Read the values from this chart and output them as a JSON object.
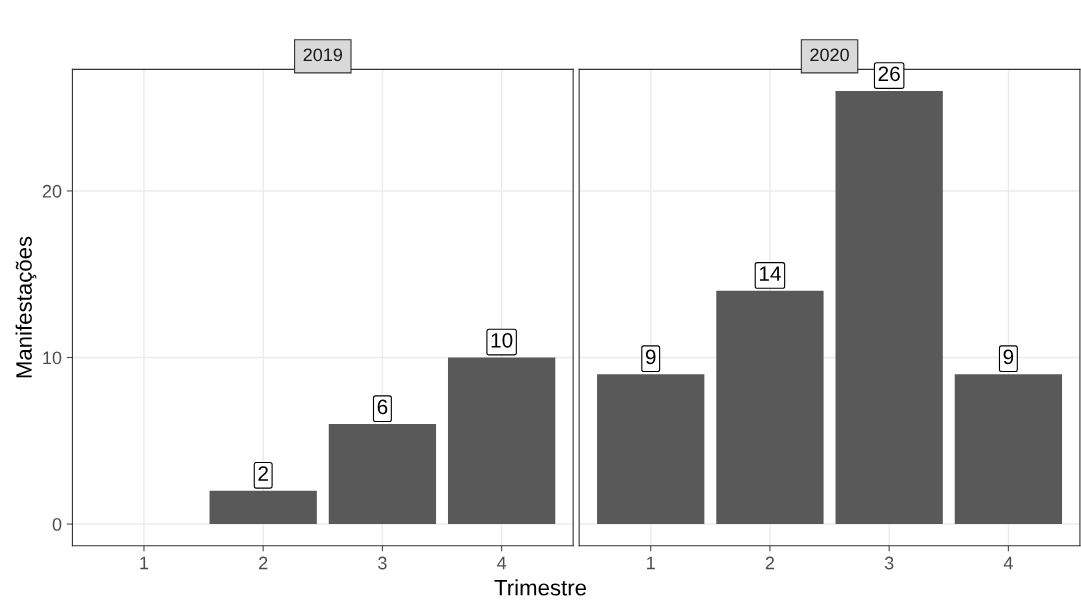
{
  "chart_data": [
    {
      "type": "bar",
      "title": "2019",
      "xlabel": "Trimestre",
      "ylabel": "Manifestações",
      "categories": [
        "1",
        "2",
        "3",
        "4"
      ],
      "values": [
        null,
        2,
        6,
        10
      ],
      "color": "#595959",
      "ylim": [
        -1.3,
        27.3
      ],
      "yticks": [
        0,
        10,
        20
      ],
      "grid": true,
      "data_labels": true
    },
    {
      "type": "bar",
      "title": "2020",
      "categories": [
        "1",
        "2",
        "3",
        "4"
      ],
      "values": [
        9,
        14,
        26,
        9
      ],
      "color": "#595959",
      "ylim": [
        -1.3,
        27.3
      ],
      "yticks": [
        0,
        10,
        20
      ],
      "grid": true,
      "data_labels": true,
      "tick_labels": "x"
    }
  ]
}
